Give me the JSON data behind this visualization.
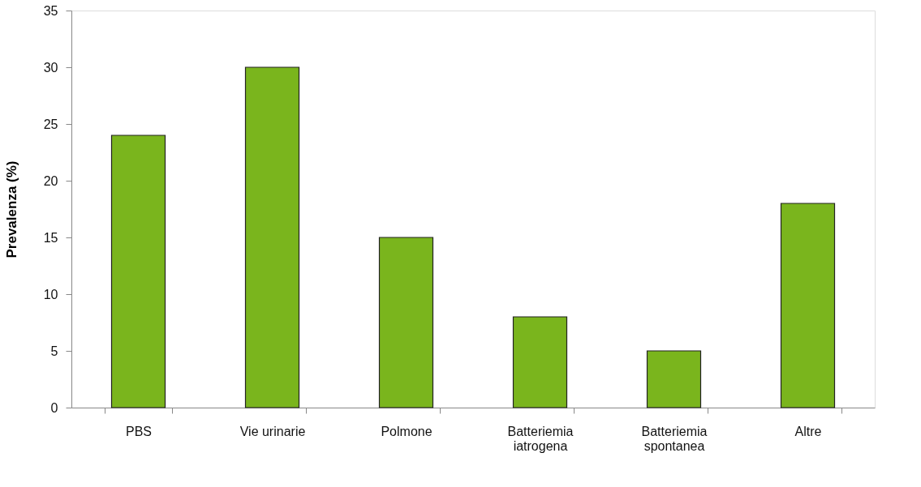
{
  "chart_data": {
    "type": "bar",
    "ylabel": "Prevalenza  (%)",
    "categories": [
      "PBS",
      "Vie urinarie",
      "Polmone",
      "Batteriemia iatrogena",
      "Batteriemia spontanea",
      "Altre"
    ],
    "values": [
      24,
      30,
      15,
      8,
      5,
      18
    ],
    "color": "#7ab51d",
    "ylim": [
      0,
      35
    ],
    "yticks": [
      0,
      5,
      10,
      15,
      20,
      25,
      30,
      35
    ],
    "grid": false
  }
}
